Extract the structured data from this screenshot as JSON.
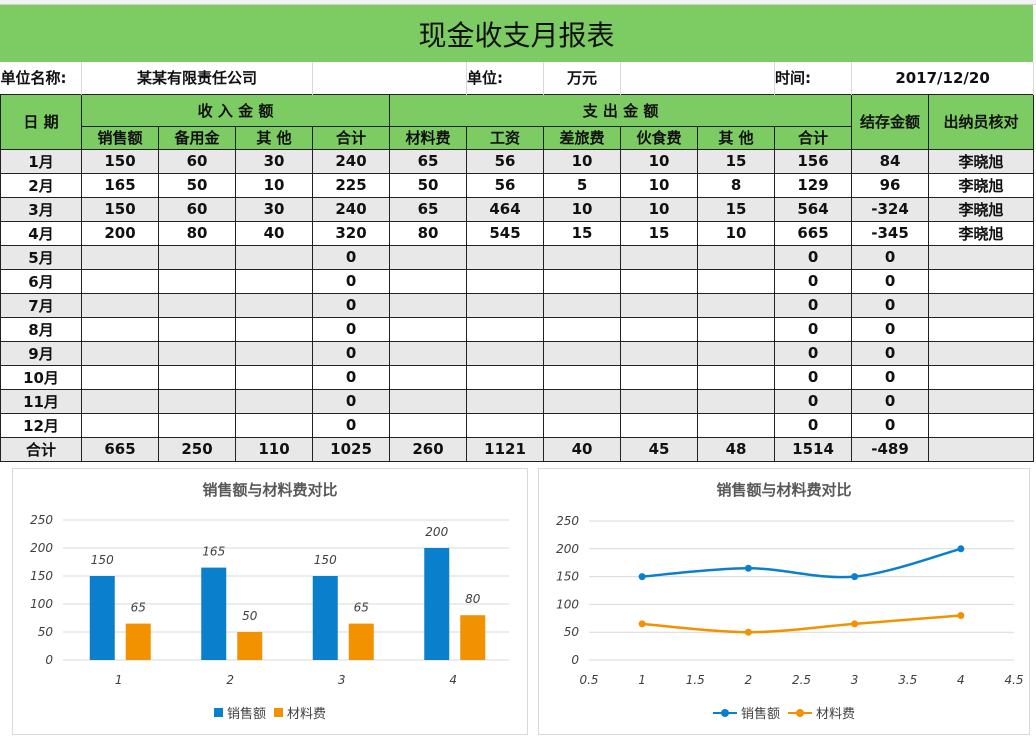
{
  "title": "现金收支月报表",
  "info": {
    "company_label": "单位名称:",
    "company": "某某有限责任公司",
    "unit_label": "单位:",
    "unit": "万元",
    "time_label": "时间:",
    "time": "2017/12/20"
  },
  "headers": {
    "date": "日 期",
    "income": "收 入 金 额",
    "expense": "支 出 金 额",
    "balance": "结存金额",
    "cashier": "出纳员核对",
    "income_cols": [
      "销售额",
      "备用金",
      "其 他",
      "合计"
    ],
    "expense_cols": [
      "材料费",
      "工资",
      "差旅费",
      "伙食费",
      "其 他",
      "合计"
    ]
  },
  "rows": [
    {
      "month": "1月",
      "v": [
        "150",
        "60",
        "30",
        "240",
        "65",
        "56",
        "10",
        "10",
        "15",
        "156",
        "84",
        "李晓旭"
      ]
    },
    {
      "month": "2月",
      "v": [
        "165",
        "50",
        "10",
        "225",
        "50",
        "56",
        "5",
        "10",
        "8",
        "129",
        "96",
        "李晓旭"
      ]
    },
    {
      "month": "3月",
      "v": [
        "150",
        "60",
        "30",
        "240",
        "65",
        "464",
        "10",
        "10",
        "15",
        "564",
        "-324",
        "李晓旭"
      ]
    },
    {
      "month": "4月",
      "v": [
        "200",
        "80",
        "40",
        "320",
        "80",
        "545",
        "15",
        "15",
        "10",
        "665",
        "-345",
        "李晓旭"
      ]
    },
    {
      "month": "5月",
      "v": [
        "",
        "",
        "",
        "0",
        "",
        "",
        "",
        "",
        "",
        "0",
        "0",
        ""
      ]
    },
    {
      "month": "6月",
      "v": [
        "",
        "",
        "",
        "0",
        "",
        "",
        "",
        "",
        "",
        "0",
        "0",
        ""
      ]
    },
    {
      "month": "7月",
      "v": [
        "",
        "",
        "",
        "0",
        "",
        "",
        "",
        "",
        "",
        "0",
        "0",
        ""
      ]
    },
    {
      "month": "8月",
      "v": [
        "",
        "",
        "",
        "0",
        "",
        "",
        "",
        "",
        "",
        "0",
        "0",
        ""
      ]
    },
    {
      "month": "9月",
      "v": [
        "",
        "",
        "",
        "0",
        "",
        "",
        "",
        "",
        "",
        "0",
        "0",
        ""
      ]
    },
    {
      "month": "10月",
      "v": [
        "",
        "",
        "",
        "0",
        "",
        "",
        "",
        "",
        "",
        "0",
        "0",
        ""
      ]
    },
    {
      "month": "11月",
      "v": [
        "",
        "",
        "",
        "0",
        "",
        "",
        "",
        "",
        "",
        "0",
        "0",
        ""
      ]
    },
    {
      "month": "12月",
      "v": [
        "",
        "",
        "",
        "0",
        "",
        "",
        "",
        "",
        "",
        "0",
        "0",
        ""
      ]
    },
    {
      "month": "合计",
      "v": [
        "665",
        "250",
        "110",
        "1025",
        "260",
        "1121",
        "40",
        "45",
        "48",
        "1514",
        "-489",
        ""
      ]
    }
  ],
  "colors": {
    "header_green": "#7dcb63",
    "series1": "#0a7fcb",
    "series2": "#f39200"
  },
  "chart_data": [
    {
      "type": "bar",
      "title": "销售额与材料费对比",
      "categories": [
        "1",
        "2",
        "3",
        "4"
      ],
      "ylim": [
        0,
        250
      ],
      "yticks": [
        "0",
        "50",
        "100",
        "150",
        "200",
        "250"
      ],
      "grid": true,
      "legend": "bottom",
      "series": [
        {
          "name": "销售额",
          "values": [
            150,
            165,
            150,
            200
          ]
        },
        {
          "name": "材料费",
          "values": [
            65,
            50,
            65,
            80
          ]
        }
      ]
    },
    {
      "type": "line",
      "title": "销售额与材料费对比",
      "x": [
        1,
        2,
        3,
        4
      ],
      "xlim": [
        0.5,
        4.5
      ],
      "xticks": [
        "0.5",
        "1",
        "1.5",
        "2",
        "2.5",
        "3",
        "3.5",
        "4",
        "4.5"
      ],
      "ylim": [
        0,
        250
      ],
      "yticks": [
        "0",
        "50",
        "100",
        "150",
        "200",
        "250"
      ],
      "grid": true,
      "legend": "bottom",
      "smooth": true,
      "series": [
        {
          "name": "销售额",
          "values": [
            150,
            165,
            150,
            200
          ]
        },
        {
          "name": "材料费",
          "values": [
            65,
            50,
            65,
            80
          ]
        }
      ]
    }
  ]
}
